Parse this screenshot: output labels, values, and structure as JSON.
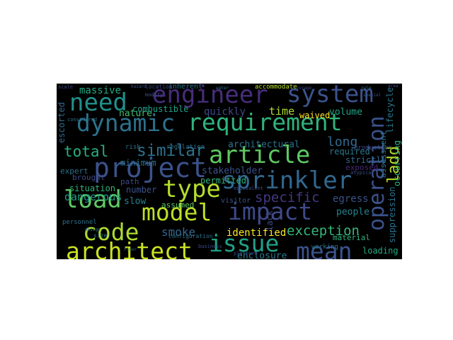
{
  "words": [
    {
      "text": "engineer",
      "color": "#472d7b"
    },
    {
      "text": "system",
      "color": "#3b528b"
    },
    {
      "text": "need",
      "color": "#21918c"
    },
    {
      "text": "dynamic",
      "color": "#2c728e"
    },
    {
      "text": "requirement",
      "color": "#2fb47c"
    },
    {
      "text": "project",
      "color": "#3b528b"
    },
    {
      "text": "article",
      "color": "#5ec962"
    },
    {
      "text": "total",
      "color": "#28ae80"
    },
    {
      "text": "similar",
      "color": "#2c728e"
    },
    {
      "text": "sprinkler",
      "color": "#31688e"
    },
    {
      "text": "load",
      "color": "#5ec962"
    },
    {
      "text": "type",
      "color": "#b5de2b"
    },
    {
      "text": "model",
      "color": "#bddf26"
    },
    {
      "text": "impact",
      "color": "#3e4a89"
    },
    {
      "text": "code",
      "color": "#addc30"
    },
    {
      "text": "architect",
      "color": "#cae11f"
    },
    {
      "text": "issue",
      "color": "#1fa187"
    },
    {
      "text": "mean",
      "color": "#3b528b"
    },
    {
      "text": "operation",
      "color": "#3b528b"
    },
    {
      "text": "ladd",
      "color": "#b8de29"
    },
    {
      "text": "exception",
      "color": "#35b779"
    },
    {
      "text": "massive",
      "color": "#22a884"
    },
    {
      "text": "quickly",
      "color": "#3e4a89"
    },
    {
      "text": "time",
      "color": "#addc30"
    },
    {
      "text": "volume",
      "color": "#20a486"
    },
    {
      "text": "long",
      "color": "#31688e"
    },
    {
      "text": "lifecycle",
      "color": "#2a788e"
    },
    {
      "text": "occurring",
      "color": "#2fb47c"
    },
    {
      "text": "escorted",
      "color": "#31688e"
    },
    {
      "text": "nature",
      "color": "#44bf70"
    },
    {
      "text": "combustible",
      "color": "#1fa187"
    },
    {
      "text": "waived",
      "color": "#fde725"
    },
    {
      "text": "architectural",
      "color": "#2c728e"
    },
    {
      "text": "stakeholder",
      "color": "#3b528b"
    },
    {
      "text": "required",
      "color": "#2a788e"
    },
    {
      "text": "strictly",
      "color": "#31688e"
    },
    {
      "text": "exposed",
      "color": "#482878"
    },
    {
      "text": "specific",
      "color": "#443983"
    },
    {
      "text": "egress",
      "color": "#3b528b"
    },
    {
      "text": "dangerous",
      "color": "#1f9e89"
    },
    {
      "text": "slow",
      "color": "#26828e"
    },
    {
      "text": "smoke",
      "color": "#31688e"
    },
    {
      "text": "identified",
      "color": "#fde725"
    },
    {
      "text": "enclosure",
      "color": "#2a788e"
    },
    {
      "text": "loading",
      "color": "#22a884"
    },
    {
      "text": "suppression",
      "color": "#2c728e"
    },
    {
      "text": "assessment",
      "color": "#2a788e"
    },
    {
      "text": "people",
      "color": "#26828e"
    },
    {
      "text": "material",
      "color": "#2fb47c"
    },
    {
      "text": "lack",
      "color": "#3e4a89"
    },
    {
      "text": "situation",
      "color": "#2fb47c"
    },
    {
      "text": "number",
      "color": "#3b528b"
    },
    {
      "text": "expert",
      "color": "#2c728e"
    },
    {
      "text": "path",
      "color": "#3e4a89"
    },
    {
      "text": "visitor",
      "color": "#3b528b"
    },
    {
      "text": "permitted",
      "color": "#2fb47c"
    },
    {
      "text": "minimum",
      "color": "#2c728e"
    },
    {
      "text": "brought",
      "color": "#3e4a89"
    },
    {
      "text": "personnel",
      "color": "#2c728e"
    },
    {
      "text": "assumed",
      "color": "#5ec962"
    },
    {
      "text": "risk",
      "color": "#2c728e"
    },
    {
      "text": "regulation",
      "color": "#2c728e"
    },
    {
      "text": "inherent",
      "color": "#2c728e"
    },
    {
      "text": "location",
      "color": "#3e4a89"
    },
    {
      "text": "accommodate",
      "color": "#b5de2b"
    },
    {
      "text": "modify",
      "color": "#3b528b"
    },
    {
      "text": "production",
      "color": "#3e4a89"
    },
    {
      "text": "working",
      "color": "#2c728e"
    },
    {
      "text": "configuration",
      "color": "#2c728e"
    },
    {
      "text": "atypical",
      "color": "#3b528b"
    },
    {
      "text": "size",
      "color": "#2c728e"
    },
    {
      "text": "platform",
      "color": "#3e4a89"
    },
    {
      "text": "business",
      "color": "#3e4a89"
    },
    {
      "text": "considered",
      "color": "#2c728e"
    },
    {
      "text": "equivalent",
      "color": "#3b528b"
    },
    {
      "text": "scale",
      "color": "#3e4a89"
    },
    {
      "text": "design",
      "color": "#2c728e"
    },
    {
      "text": "storage",
      "color": "#3e4a89"
    },
    {
      "text": "water",
      "color": "#2c728e"
    },
    {
      "text": "special",
      "color": "#3b528b"
    },
    {
      "text": "floor",
      "color": "#2c728e"
    },
    {
      "text": "area",
      "color": "#3e4a89"
    },
    {
      "text": "hazard",
      "color": "#3b528b"
    },
    {
      "text": "rule",
      "color": "#2c728e"
    }
  ]
}
